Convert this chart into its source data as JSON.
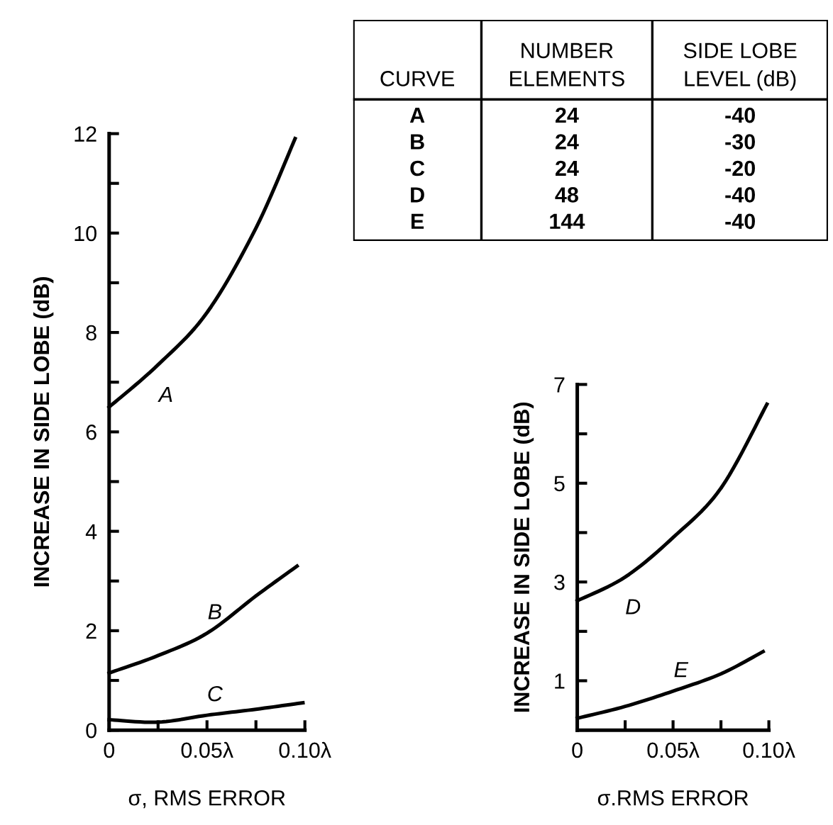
{
  "chart_data": [
    {
      "type": "line",
      "xlabel": "σ, RMS ERROR",
      "ylabel": "INCREASE IN SIDE LOBE (dB)",
      "series": [
        {
          "name": "A",
          "color": "#000000",
          "x": [
            0,
            0.025,
            0.05,
            0.075,
            0.095
          ],
          "values": [
            6.5,
            7.35,
            8.4,
            10.1,
            11.9
          ]
        },
        {
          "name": "B",
          "color": "#000000",
          "x": [
            0,
            0.025,
            0.05,
            0.075,
            0.096
          ],
          "values": [
            1.15,
            1.5,
            1.95,
            2.7,
            3.3
          ]
        },
        {
          "name": "C",
          "color": "#000000",
          "x": [
            0,
            0.025,
            0.05,
            0.075,
            0.099
          ],
          "values": [
            0.21,
            0.16,
            0.3,
            0.42,
            0.55
          ]
        }
      ],
      "xlim": [
        0,
        0.1
      ],
      "ylim": [
        0,
        12
      ],
      "xticks": [
        0,
        {
          "value": 0.025,
          "label": null
        },
        {
          "value": 0.05,
          "label": "0.05λ"
        },
        {
          "value": 0.075,
          "label": null
        },
        {
          "value": 0.1,
          "label": "0.10λ"
        }
      ],
      "yticks": [
        0,
        {
          "value": 1,
          "label": null
        },
        2,
        {
          "value": 3,
          "label": null
        },
        4,
        {
          "value": 5,
          "label": null
        },
        6,
        {
          "value": 7,
          "label": null
        },
        8,
        {
          "value": 9,
          "label": null
        },
        10,
        {
          "value": 11,
          "label": null
        },
        12
      ],
      "grid": false,
      "legend": false,
      "marker": "none",
      "line_style": "solid"
    },
    {
      "type": "other",
      "annotations": [
        "CURVE",
        "NUMBER\nELEMENTS",
        "SIDE LOBE\nLEVEL (dB)",
        "A",
        "24",
        "-40",
        "B",
        "24",
        "-30",
        "C",
        "24",
        "-20",
        "D",
        "48",
        "-40",
        "E",
        "144",
        "-40"
      ]
    },
    {
      "type": "line",
      "xlabel": "σ.RMS ERROR",
      "ylabel": "INCREASE IN SIDE LOBE (dB)",
      "series": [
        {
          "name": "D",
          "color": "#000000",
          "x": [
            0,
            0.025,
            0.05,
            0.075,
            0.099
          ],
          "values": [
            2.62,
            3.1,
            3.9,
            4.9,
            6.6
          ]
        },
        {
          "name": "E",
          "color": "#000000",
          "x": [
            0,
            0.025,
            0.05,
            0.075,
            0.097
          ],
          "values": [
            0.24,
            0.48,
            0.79,
            1.14,
            1.59
          ]
        }
      ],
      "xlim": [
        0,
        0.1
      ],
      "ylim": [
        0,
        7
      ],
      "xticks": [
        0,
        {
          "value": 0.025,
          "label": null
        },
        {
          "value": 0.05,
          "label": "0.05λ"
        },
        {
          "value": 0.075,
          "label": null
        },
        {
          "value": 0.1,
          "label": "0.10λ"
        }
      ],
      "yticks": [
        1,
        {
          "value": 2,
          "label": null
        },
        3,
        {
          "value": 4,
          "label": null
        },
        5,
        {
          "value": 6,
          "label": null
        },
        7
      ],
      "grid": false,
      "legend": false,
      "marker": "none",
      "line_style": "solid"
    }
  ]
}
